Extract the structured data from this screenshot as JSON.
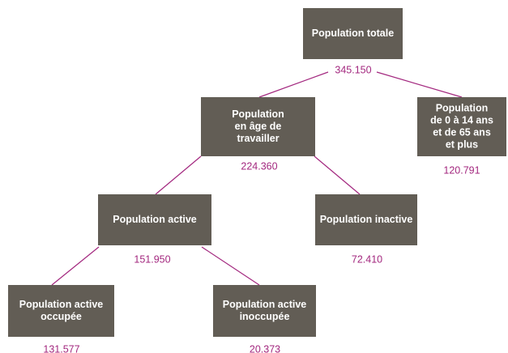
{
  "nodes": [
    {
      "label": [
        "Population totale"
      ],
      "value": "345.150"
    },
    {
      "label": [
        "Population",
        "en âge de",
        "travailler"
      ],
      "value": "224.360"
    },
    {
      "label": [
        "Population",
        "de 0 à 14 ans",
        "et de 65 ans",
        "et plus"
      ],
      "value": "120.791"
    },
    {
      "label": [
        "Population active"
      ],
      "value": "151.950"
    },
    {
      "label": [
        "Population inactive"
      ],
      "value": "72.410"
    },
    {
      "label": [
        "Population active",
        "occupée"
      ],
      "value": "131.577"
    },
    {
      "label": [
        "Population active",
        "inoccupée"
      ],
      "value": "20.373"
    }
  ]
}
